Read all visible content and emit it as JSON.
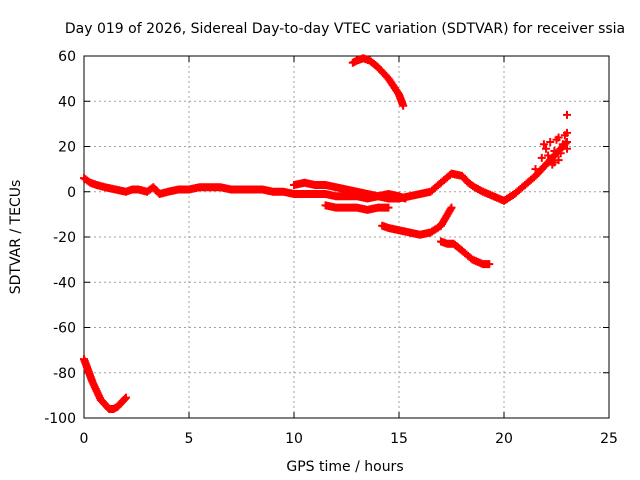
{
  "chart_data": {
    "type": "scatter",
    "title": "Day 019 of 2026, Sidereal Day-to-day VTEC variation (SDTVAR) for receiver ssia",
    "xlabel": "GPS time / hours",
    "ylabel": "SDTVAR / TECUs",
    "xlim": [
      0,
      25
    ],
    "ylim": [
      -100,
      60
    ],
    "x_ticks": [
      0,
      5,
      10,
      15,
      20,
      25
    ],
    "y_ticks": [
      -100,
      -80,
      -60,
      -40,
      -20,
      0,
      20,
      40,
      60
    ],
    "x_tick_labels": [
      "0",
      "5",
      "10",
      "15",
      "20",
      "25"
    ],
    "y_tick_labels": [
      "-100",
      "-80",
      "-60",
      "-40",
      "-20",
      "0",
      "20",
      "40",
      "60"
    ],
    "grid": true,
    "marker": "+",
    "color": "#ff0000",
    "series": [
      {
        "name": "main-trace",
        "x": [
          0.0,
          0.3,
          0.6,
          1.0,
          1.5,
          2.0,
          2.3,
          2.6,
          3.0,
          3.3,
          3.6,
          4.0,
          4.5,
          5.0,
          5.5,
          6.0,
          6.5,
          7.0,
          7.5,
          8.0,
          8.5,
          9.0,
          9.5,
          10.0,
          10.5,
          11.0,
          11.5,
          12.0,
          12.5,
          13.0,
          13.5,
          14.0,
          14.5,
          15.0,
          15.5,
          16.0,
          16.5,
          17.0,
          17.5,
          18.0,
          18.3,
          18.6,
          19.0,
          19.5,
          20.0,
          20.5,
          21.0,
          21.5,
          22.0,
          22.5,
          23.0
        ],
        "y": [
          6,
          4,
          3,
          2,
          1,
          0,
          1,
          1,
          0,
          2,
          -1,
          0,
          1,
          1,
          2,
          2,
          2,
          1,
          1,
          1,
          1,
          0,
          0,
          -1,
          -1,
          -1,
          -1,
          -2,
          -2,
          -2,
          -3,
          -2,
          -3,
          -3,
          -2,
          -1,
          0,
          4,
          8,
          7,
          4,
          2,
          0,
          -2,
          -4,
          -1,
          3,
          7,
          12,
          17,
          22
        ]
      },
      {
        "name": "secondary-trace",
        "x": [
          10.0,
          10.5,
          11.0,
          11.5,
          12.0,
          12.5,
          13.0,
          13.5,
          14.0,
          14.5,
          15.0,
          15.3
        ],
        "y": [
          3,
          4,
          3,
          3,
          2,
          1,
          0,
          -1,
          -2,
          -1,
          -2,
          -3
        ]
      },
      {
        "name": "scatter-cluster",
        "x": [
          21.5,
          21.8,
          22.0,
          22.2,
          22.4,
          22.6,
          22.8,
          22.9,
          23.0,
          22.3,
          22.7,
          21.9,
          22.1,
          22.5,
          22.8,
          23.0,
          22.4,
          22.6
        ],
        "y": [
          10,
          15,
          19,
          22,
          18,
          14,
          20,
          25,
          26,
          12,
          17,
          21,
          16,
          23,
          21,
          19,
          13,
          24
        ]
      },
      {
        "name": "segment-a",
        "x": [
          11.5,
          12.0,
          12.5,
          13.0,
          13.5,
          14.0,
          14.5
        ],
        "y": [
          -6,
          -7,
          -7,
          -7,
          -8,
          -7,
          -7
        ]
      },
      {
        "name": "segment-b",
        "x": [
          14.2,
          14.5,
          15.0,
          15.5,
          16.0,
          16.5,
          17.0,
          17.5
        ],
        "y": [
          -15,
          -16,
          -17,
          -18,
          -19,
          -18,
          -15,
          -7
        ]
      },
      {
        "name": "segment-c",
        "x": [
          17.0,
          17.3,
          17.6,
          18.0,
          18.5,
          19.0,
          19.3
        ],
        "y": [
          -22,
          -23,
          -23,
          -26,
          -30,
          -32,
          -32
        ]
      },
      {
        "name": "segment-d",
        "x": [
          12.8,
          13.0,
          13.3,
          13.6,
          14.0,
          14.5,
          15.0,
          15.2
        ],
        "y": [
          57,
          58,
          59,
          58,
          55,
          50,
          43,
          38
        ]
      },
      {
        "name": "segment-e",
        "x": [
          0.0,
          0.2,
          0.4,
          0.6,
          0.8,
          1.0,
          1.2,
          1.4,
          1.6,
          1.8,
          2.0
        ],
        "y": [
          -74,
          -79,
          -84,
          -88,
          -92,
          -94,
          -96,
          -96,
          -95,
          -93,
          -91
        ]
      },
      {
        "name": "outlier",
        "x": [
          23.0
        ],
        "y": [
          34
        ]
      }
    ]
  }
}
